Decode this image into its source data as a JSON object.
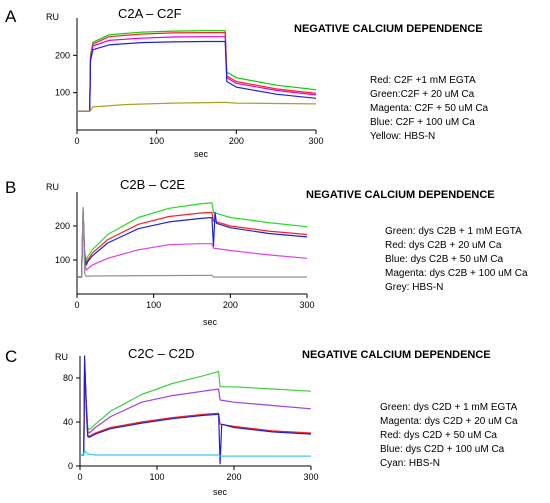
{
  "chart_data": [
    {
      "type": "line",
      "panel_letter": "A",
      "title": "C2A – C2F",
      "heading": "NEGATIVE CALCIUM DEPENDENCE",
      "ylabel": "RU",
      "xlabel": "sec",
      "xlim": [
        0,
        300
      ],
      "ylim": [
        0,
        300
      ],
      "xticks": [
        "0",
        "100",
        "200",
        "300"
      ],
      "yticks": [
        "100",
        "200"
      ],
      "ytick_values": [
        100,
        200
      ],
      "legend": [
        "Red: C2F +1 mM EGTA",
        "Green:C2F + 20 uM Ca",
        "Magenta: C2F + 50 uM Ca",
        "Blue: C2F + 100 uM Ca",
        "Yellow: HBS-N"
      ],
      "series": [
        {
          "color": "#00d000",
          "x": [
            0,
            16,
            17,
            20,
            40,
            80,
            120,
            160,
            186,
            188,
            200,
            250,
            300
          ],
          "y": [
            50,
            50,
            200,
            235,
            255,
            262,
            265,
            266,
            266,
            155,
            140,
            120,
            108
          ]
        },
        {
          "color": "#ff2020",
          "x": [
            0,
            16,
            17,
            20,
            40,
            80,
            120,
            160,
            186,
            188,
            200,
            250,
            300
          ],
          "y": [
            50,
            50,
            195,
            230,
            250,
            257,
            260,
            261,
            261,
            145,
            130,
            110,
            98
          ]
        },
        {
          "color": "#e000e0",
          "x": [
            0,
            16,
            17,
            20,
            40,
            80,
            120,
            160,
            186,
            188,
            200,
            250,
            300
          ],
          "y": [
            50,
            50,
            190,
            225,
            240,
            246,
            249,
            250,
            250,
            140,
            125,
            106,
            94
          ]
        },
        {
          "color": "#2020e0",
          "x": [
            0,
            16,
            17,
            20,
            40,
            80,
            120,
            160,
            186,
            188,
            200,
            250,
            300
          ],
          "y": [
            50,
            50,
            185,
            215,
            228,
            234,
            236,
            237,
            237,
            130,
            115,
            96,
            85
          ]
        },
        {
          "color": "#b0a020",
          "x": [
            0,
            16,
            20,
            60,
            120,
            186,
            200,
            250,
            300
          ],
          "y": [
            50,
            50,
            62,
            68,
            72,
            74,
            72,
            71,
            70
          ]
        }
      ]
    },
    {
      "type": "line",
      "panel_letter": "B",
      "title": "C2B – C2E",
      "heading": "NEGATIVE CALCIUM DEPENDENCE",
      "ylabel": "RU",
      "xlabel": "sec",
      "xlim": [
        0,
        300
      ],
      "ylim": [
        0,
        300
      ],
      "xticks": [
        "0",
        "100",
        "200",
        "300"
      ],
      "yticks": [
        "100",
        "200"
      ],
      "ytick_values": [
        100,
        200
      ],
      "legend": [
        "Green: dys C2B + 1 mM EGTA",
        "Red: dys C2B + 20 uM Ca",
        "Blue: dys C2B + 50 uM Ca",
        "Magenta: dys C2B + 100 uM Ca",
        "Grey: HBS-N"
      ],
      "series": [
        {
          "color": "#20e020",
          "x": [
            0,
            6,
            8,
            10,
            12,
            14,
            20,
            40,
            80,
            120,
            160,
            176,
            178,
            200,
            250,
            300
          ],
          "y": [
            50,
            50,
            250,
            120,
            100,
            110,
            130,
            175,
            225,
            252,
            265,
            268,
            240,
            225,
            210,
            198
          ]
        },
        {
          "color": "#ff2020",
          "x": [
            0,
            6,
            8,
            10,
            12,
            14,
            20,
            40,
            80,
            120,
            160,
            176,
            178,
            200,
            250,
            300
          ],
          "y": [
            50,
            50,
            245,
            110,
            90,
            100,
            120,
            160,
            205,
            228,
            238,
            240,
            215,
            200,
            185,
            175
          ]
        },
        {
          "color": "#2020e0",
          "x": [
            0,
            6,
            8,
            10,
            12,
            14,
            20,
            40,
            80,
            120,
            160,
            176,
            178,
            180,
            182,
            200,
            250,
            300
          ],
          "y": [
            50,
            50,
            245,
            105,
            85,
            95,
            112,
            150,
            192,
            212,
            222,
            225,
            140,
            240,
            208,
            195,
            178,
            168
          ]
        },
        {
          "color": "#e040e0",
          "x": [
            0,
            6,
            8,
            10,
            12,
            14,
            20,
            40,
            80,
            120,
            160,
            176,
            178,
            200,
            250,
            300
          ],
          "y": [
            50,
            50,
            240,
            90,
            70,
            75,
            85,
            105,
            130,
            145,
            148,
            148,
            135,
            128,
            115,
            105
          ]
        },
        {
          "color": "#909090",
          "x": [
            0,
            6,
            8,
            10,
            12,
            20,
            100,
            176,
            178,
            200,
            250,
            300
          ],
          "y": [
            50,
            50,
            255,
            60,
            52,
            53,
            54,
            55,
            50,
            50,
            50,
            50
          ]
        }
      ]
    },
    {
      "type": "line",
      "panel_letter": "C",
      "title": "C2C – C2D",
      "heading": "NEGATIVE CALCIUM DEPENDENCE",
      "ylabel": "RU",
      "xlabel": "sec",
      "xlim": [
        0,
        300
      ],
      "ylim": [
        0,
        100
      ],
      "xticks": [
        "0",
        "100",
        "200",
        "300"
      ],
      "yticks": [
        "0",
        "40",
        "80"
      ],
      "ytick_values": [
        0,
        40,
        80
      ],
      "legend": [
        "Green: dys C2D + 1 mM EGTA",
        "Magenta: dys C2D + 20 uM Ca",
        "Red: dys C2D + 50 uM Ca",
        "Blue: dys C2D + 100 uM Ca",
        "Cyan: HBS-N"
      ],
      "series": [
        {
          "color": "#40d040",
          "x": [
            0,
            5,
            6,
            8,
            10,
            12,
            20,
            40,
            80,
            120,
            160,
            180,
            182,
            200,
            250,
            300
          ],
          "y": [
            10,
            10,
            90,
            60,
            35,
            33,
            38,
            50,
            65,
            75,
            82,
            86,
            72,
            72,
            70,
            68
          ]
        },
        {
          "color": "#a040e0",
          "x": [
            0,
            5,
            6,
            8,
            10,
            12,
            20,
            40,
            80,
            120,
            160,
            180,
            182,
            200,
            250,
            300
          ],
          "y": [
            10,
            10,
            95,
            60,
            32,
            30,
            35,
            45,
            58,
            64,
            68,
            70,
            60,
            58,
            55,
            52
          ]
        },
        {
          "color": "#ff2020",
          "x": [
            0,
            5,
            6,
            8,
            10,
            12,
            20,
            40,
            80,
            120,
            160,
            180,
            182,
            200,
            250,
            300
          ],
          "y": [
            10,
            10,
            95,
            55,
            28,
            27,
            30,
            35,
            40,
            44,
            47,
            48,
            38,
            36,
            32,
            30
          ]
        },
        {
          "color": "#2020d0",
          "x": [
            0,
            5,
            6,
            8,
            10,
            12,
            20,
            40,
            80,
            120,
            160,
            180,
            182,
            184,
            200,
            250,
            300
          ],
          "y": [
            10,
            10,
            100,
            55,
            27,
            26,
            29,
            34,
            39,
            43,
            46,
            47,
            2,
            38,
            35,
            31,
            29
          ]
        },
        {
          "color": "#40c8f0",
          "x": [
            0,
            5,
            6,
            10,
            20,
            100,
            180,
            182,
            200,
            250,
            300
          ],
          "y": [
            10,
            10,
            14,
            11,
            10,
            10,
            10,
            9,
            9,
            9,
            9
          ]
        }
      ]
    }
  ]
}
